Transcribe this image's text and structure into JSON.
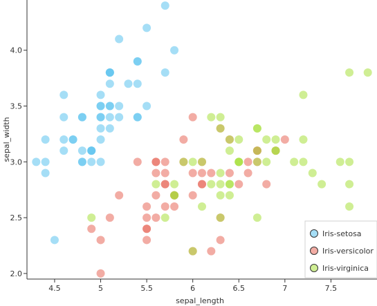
{
  "chart_data": {
    "type": "scatter",
    "title": "",
    "xlabel": "sepal_length",
    "ylabel": "sepal_width",
    "xlim": [
      4.2,
      8.0
    ],
    "ylim": [
      1.95,
      4.45
    ],
    "xticks": [
      4.5,
      5,
      5.5,
      6,
      6.5,
      7,
      7.5
    ],
    "xtick_labels": [
      "4.5",
      "5",
      "5.5",
      "6",
      "6.5",
      "7",
      "7.5"
    ],
    "yticks": [
      2.0,
      2.5,
      3.0,
      3.5,
      4.0
    ],
    "ytick_labels": [
      "2.0",
      "2.5",
      "3.0",
      "3.5",
      "4.0"
    ],
    "grid": false,
    "legend_position": "bottom-right",
    "series": [
      {
        "name": "Iris-setosa",
        "color": "#5bc2ee",
        "points": [
          [
            5.1,
            3.5
          ],
          [
            4.9,
            3.0
          ],
          [
            4.7,
            3.2
          ],
          [
            4.6,
            3.1
          ],
          [
            5.0,
            3.6
          ],
          [
            5.4,
            3.9
          ],
          [
            4.6,
            3.4
          ],
          [
            5.0,
            3.4
          ],
          [
            4.4,
            2.9
          ],
          [
            4.9,
            3.1
          ],
          [
            5.4,
            3.7
          ],
          [
            4.8,
            3.4
          ],
          [
            4.8,
            3.0
          ],
          [
            4.3,
            3.0
          ],
          [
            5.8,
            4.0
          ],
          [
            5.7,
            4.4
          ],
          [
            5.4,
            3.9
          ],
          [
            5.1,
            3.5
          ],
          [
            5.7,
            3.8
          ],
          [
            5.1,
            3.8
          ],
          [
            5.4,
            3.4
          ],
          [
            5.1,
            3.7
          ],
          [
            4.6,
            3.6
          ],
          [
            5.1,
            3.3
          ],
          [
            4.8,
            3.4
          ],
          [
            5.0,
            3.0
          ],
          [
            5.0,
            3.4
          ],
          [
            5.2,
            3.5
          ],
          [
            5.2,
            3.4
          ],
          [
            4.7,
            3.2
          ],
          [
            4.8,
            3.1
          ],
          [
            5.4,
            3.4
          ],
          [
            5.2,
            4.1
          ],
          [
            5.5,
            4.2
          ],
          [
            4.9,
            3.1
          ],
          [
            5.0,
            3.2
          ],
          [
            5.5,
            3.5
          ],
          [
            4.9,
            3.1
          ],
          [
            4.4,
            3.0
          ],
          [
            5.1,
            3.4
          ],
          [
            5.0,
            3.5
          ],
          [
            4.5,
            2.3
          ],
          [
            4.4,
            3.2
          ],
          [
            5.0,
            3.5
          ],
          [
            5.1,
            3.8
          ],
          [
            4.8,
            3.0
          ],
          [
            5.1,
            3.8
          ],
          [
            4.6,
            3.2
          ],
          [
            5.3,
            3.7
          ],
          [
            5.0,
            3.3
          ]
        ]
      },
      {
        "name": "Iris-versicolor",
        "color": "#e8675a",
        "points": [
          [
            7.0,
            3.2
          ],
          [
            6.4,
            3.2
          ],
          [
            6.9,
            3.1
          ],
          [
            5.5,
            2.3
          ],
          [
            6.5,
            2.8
          ],
          [
            5.7,
            2.8
          ],
          [
            6.3,
            3.3
          ],
          [
            4.9,
            2.4
          ],
          [
            6.6,
            2.9
          ],
          [
            5.2,
            2.7
          ],
          [
            5.0,
            2.0
          ],
          [
            5.9,
            3.0
          ],
          [
            6.0,
            2.2
          ],
          [
            6.1,
            2.9
          ],
          [
            5.6,
            2.9
          ],
          [
            6.7,
            3.1
          ],
          [
            5.6,
            3.0
          ],
          [
            5.8,
            2.7
          ],
          [
            6.2,
            2.2
          ],
          [
            5.6,
            2.5
          ],
          [
            5.9,
            3.2
          ],
          [
            6.1,
            2.8
          ],
          [
            6.3,
            2.5
          ],
          [
            6.1,
            2.8
          ],
          [
            6.4,
            2.9
          ],
          [
            6.6,
            3.0
          ],
          [
            6.8,
            2.8
          ],
          [
            6.7,
            3.0
          ],
          [
            6.0,
            2.9
          ],
          [
            5.7,
            2.6
          ],
          [
            5.5,
            2.4
          ],
          [
            5.5,
            2.4
          ],
          [
            5.8,
            2.7
          ],
          [
            6.0,
            2.7
          ],
          [
            5.4,
            3.0
          ],
          [
            6.0,
            3.4
          ],
          [
            6.7,
            3.1
          ],
          [
            6.3,
            2.3
          ],
          [
            5.6,
            3.0
          ],
          [
            5.5,
            2.5
          ],
          [
            5.5,
            2.6
          ],
          [
            6.1,
            3.0
          ],
          [
            5.8,
            2.6
          ],
          [
            5.0,
            2.3
          ],
          [
            5.6,
            2.7
          ],
          [
            5.7,
            3.0
          ],
          [
            5.7,
            2.9
          ],
          [
            6.2,
            2.9
          ],
          [
            5.1,
            2.5
          ],
          [
            5.7,
            2.8
          ]
        ]
      },
      {
        "name": "Iris-virginica",
        "color": "#a7e03c",
        "points": [
          [
            6.3,
            3.3
          ],
          [
            5.8,
            2.7
          ],
          [
            7.1,
            3.0
          ],
          [
            6.3,
            2.9
          ],
          [
            6.5,
            3.0
          ],
          [
            7.6,
            3.0
          ],
          [
            4.9,
            2.5
          ],
          [
            7.3,
            2.9
          ],
          [
            6.7,
            2.5
          ],
          [
            7.2,
            3.6
          ],
          [
            6.5,
            3.2
          ],
          [
            6.4,
            2.7
          ],
          [
            6.8,
            3.0
          ],
          [
            5.7,
            2.5
          ],
          [
            5.8,
            2.8
          ],
          [
            6.4,
            3.2
          ],
          [
            6.5,
            3.0
          ],
          [
            7.7,
            3.8
          ],
          [
            7.7,
            2.6
          ],
          [
            6.0,
            2.2
          ],
          [
            6.9,
            3.2
          ],
          [
            5.6,
            2.8
          ],
          [
            7.7,
            2.8
          ],
          [
            6.3,
            2.7
          ],
          [
            6.7,
            3.3
          ],
          [
            7.2,
            3.2
          ],
          [
            6.2,
            2.8
          ],
          [
            6.1,
            3.0
          ],
          [
            6.4,
            2.8
          ],
          [
            7.2,
            3.0
          ],
          [
            7.4,
            2.8
          ],
          [
            7.9,
            3.8
          ],
          [
            6.4,
            2.8
          ],
          [
            6.3,
            2.8
          ],
          [
            6.1,
            2.6
          ],
          [
            7.7,
            3.0
          ],
          [
            6.3,
            3.4
          ],
          [
            6.4,
            3.1
          ],
          [
            6.0,
            3.0
          ],
          [
            6.9,
            3.1
          ],
          [
            6.7,
            3.1
          ],
          [
            6.9,
            3.1
          ],
          [
            5.8,
            2.7
          ],
          [
            6.8,
            3.2
          ],
          [
            6.7,
            3.3
          ],
          [
            6.7,
            3.0
          ],
          [
            6.3,
            2.5
          ],
          [
            6.5,
            3.0
          ],
          [
            6.2,
            3.4
          ],
          [
            5.9,
            3.0
          ]
        ]
      }
    ]
  }
}
